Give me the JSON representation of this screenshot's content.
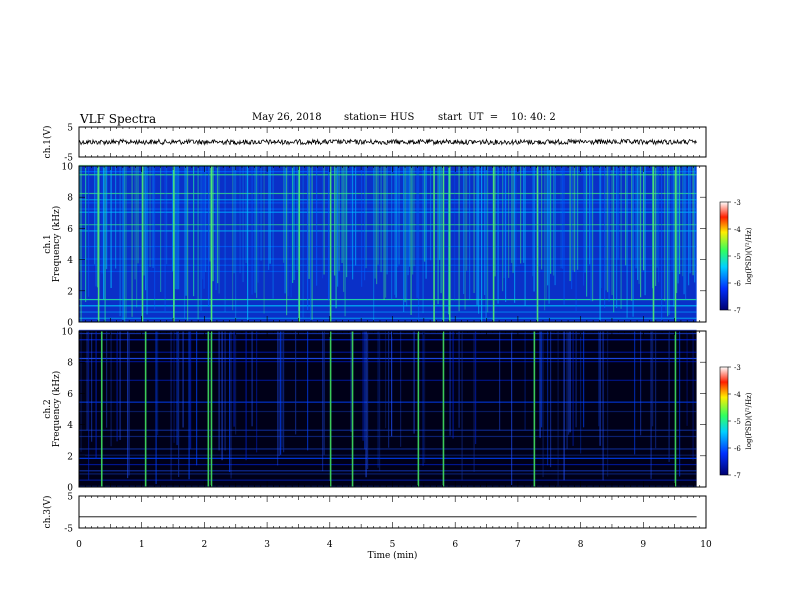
{
  "header": {
    "title": "VLF Spectra",
    "date": "May 26, 2018",
    "station": "station= HUS",
    "start": "start  UT  =    10: 40: 2"
  },
  "chart_data": [
    {
      "type": "line",
      "panel": "ch1-waveform",
      "ylabel": "ch.1(V)",
      "ylim": [
        -5,
        5
      ],
      "yticks": [
        "5",
        "-5"
      ],
      "xlim": [
        0,
        10
      ],
      "level": 0.0
    },
    {
      "type": "heatmap",
      "panel": "ch1-spectrogram",
      "ylabel": "ch.1 Frequency (kHz)",
      "ylim": [
        0,
        10
      ],
      "yticks": [
        "0",
        "2",
        "4",
        "6",
        "8",
        "10"
      ],
      "xlim": [
        0,
        10
      ],
      "colorbar": {
        "label": "log(PSD)(V²/Hz)",
        "ticks": [
          "-3",
          "-4",
          "-5",
          "-6",
          "-7"
        ],
        "range": [
          -7,
          -3
        ]
      },
      "background_level": -6.0
    },
    {
      "type": "heatmap",
      "panel": "ch2-spectrogram",
      "ylabel": "ch.2 Frequency (kHz)",
      "ylim": [
        0,
        10
      ],
      "yticks": [
        "0",
        "2",
        "4",
        "6",
        "8",
        "10"
      ],
      "xlim": [
        0,
        10
      ],
      "colorbar": {
        "label": "log(PSD)(V²/Hz)",
        "ticks": [
          "-3",
          "-4",
          "-5",
          "-6",
          "-7"
        ],
        "range": [
          -7,
          -3
        ]
      },
      "background_level": -7.0,
      "bright_events_min": [
        0.35,
        1.05,
        2.05,
        2.1,
        4.0,
        4.35,
        5.4,
        5.8,
        7.25,
        9.5
      ]
    },
    {
      "type": "line",
      "panel": "ch3-waveform",
      "ylabel": "ch.3(V)",
      "ylim": [
        -5,
        5
      ],
      "yticks": [
        "5",
        "-5"
      ],
      "xlim": [
        0,
        10
      ],
      "level": -1.5
    }
  ],
  "xaxis": {
    "label": "Time  (min)",
    "ticks": [
      "0",
      "1",
      "2",
      "3",
      "4",
      "5",
      "6",
      "7",
      "8",
      "9",
      "10"
    ]
  },
  "colors": {
    "frame": "#000000",
    "ch1_background": "#0a30c8",
    "ch2_background": "#000018",
    "event": "#40e060"
  }
}
